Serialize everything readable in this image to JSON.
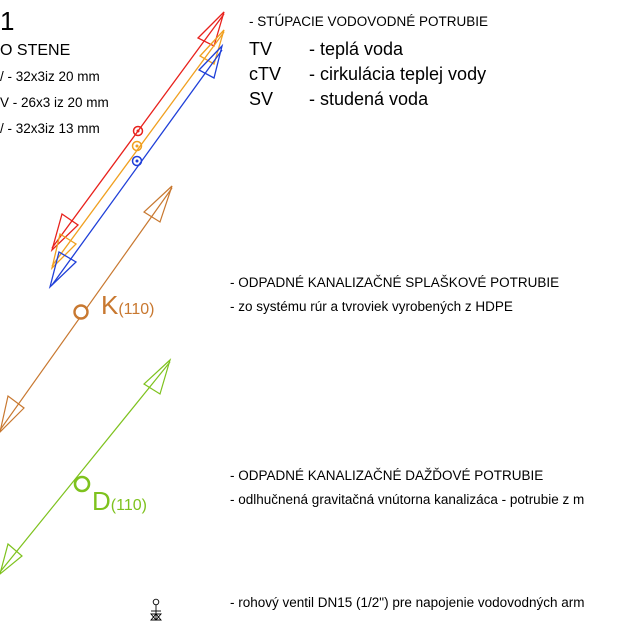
{
  "left_legend": {
    "number": "1",
    "heading": "O STENE",
    "line1": "/ - 32x3iz 20 mm",
    "line2": "V - 26x3 iz 20 mm",
    "line3": "/ - 32x3iz 13 mm"
  },
  "water": {
    "title": "- STÚPACIE VODOVODNÉ POTRUBIE",
    "items": [
      {
        "code": "TV",
        "desc": "- teplá voda",
        "color": "#e8211c"
      },
      {
        "code": "cTV",
        "desc": "- cirkulácia teplej vody",
        "color": "#f0a020"
      },
      {
        "code": "SV",
        "desc": "- studená voda",
        "color": "#1f3fd8"
      }
    ]
  },
  "sewage": {
    "label_letter": "K",
    "label_size": "(110)",
    "color": "#c87830",
    "line1": "- ODPADNÉ KANALIZAČNÉ SPLAŠKOVÉ POTRUBIE",
    "line2": "- zo systému rúr a tvroviek vyrobených z HDPE"
  },
  "rain": {
    "label_letter": "D",
    "label_size": "(110)",
    "color": "#7ec21e",
    "line1": "- ODPADNÉ KANALIZAČNÉ DAŽĎOVÉ POTRUBIE",
    "line2": "- odlhučnená gravitačná vnútorna kanalizáca - potrubie z m"
  },
  "valve": {
    "text": "- rohový ventil DN15 (1/2\") pre napojenie vodovodných arm"
  }
}
